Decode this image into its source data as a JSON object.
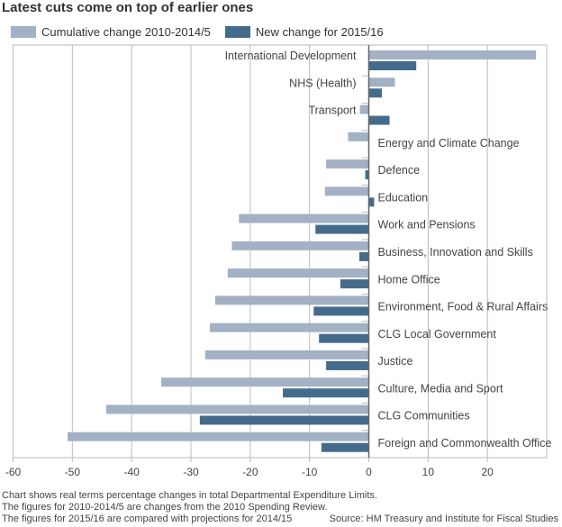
{
  "chart_data": {
    "type": "bar",
    "orientation": "horizontal",
    "title": "Latest cuts come on top of earlier ones",
    "categories": [
      "International Development",
      "NHS (Health)",
      "Transport",
      "Energy and Climate Change",
      "Defence",
      "Education",
      "Work and Pensions",
      "Business, Innovation and Skills",
      "Home Office",
      "Environment, Food & Rural Affairs",
      "CLG Local Government",
      "Justice",
      "Culture, Media and Sport",
      "CLG Communities",
      "Foreign and Commonwealth Office"
    ],
    "series": [
      {
        "name": "Cumulative change 2010-2014/5",
        "color": "#a3b1c5",
        "values": [
          28.2,
          4.4,
          -1.5,
          -3.5,
          -7.2,
          -7.4,
          -21.9,
          -23.1,
          -23.8,
          -25.9,
          -26.8,
          -27.6,
          -35.0,
          -44.3,
          -50.8
        ]
      },
      {
        "name": "New change for 2015/16",
        "color": "#456b8c",
        "values": [
          8.0,
          2.2,
          3.5,
          0,
          -0.6,
          0.9,
          -9.0,
          -1.6,
          -4.8,
          -9.3,
          -8.4,
          -7.2,
          -14.5,
          -28.5,
          -8.0
        ]
      }
    ],
    "xlim": [
      -60,
      30
    ],
    "xticks": [
      "-60",
      "-50",
      "-40",
      "-30",
      "-20",
      "-10",
      "0",
      "10",
      "20"
    ],
    "grid": true,
    "legend": "top-left",
    "notes": [
      "Chart shows real terms percentage changes in total Departmental Expenditure Limits.",
      "The figures for 2010-2014/5 are changes from the 2010 Spending Review.",
      "The figures for 2015/16 are compared with projections for 2014/15"
    ],
    "source": "Source: HM Treasury and Institute for Fiscal Studies"
  }
}
